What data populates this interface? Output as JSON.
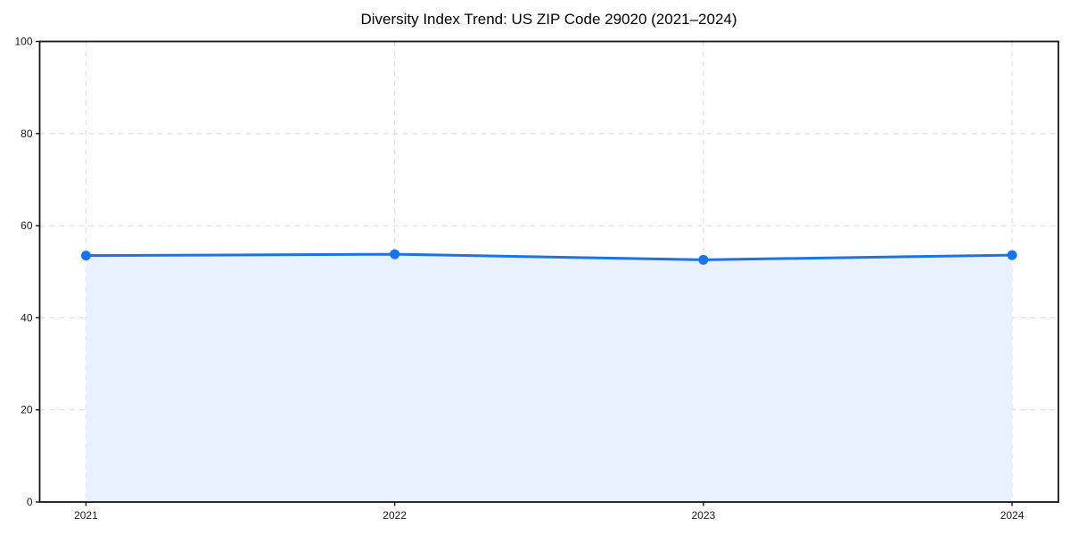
{
  "chart_data": {
    "type": "area",
    "title": "Diversity Index Trend: US ZIP Code 29020 (2021–2024)",
    "series_name": "Diversity Index",
    "x": [
      2021,
      2022,
      2023,
      2024
    ],
    "values": [
      53.5,
      53.8,
      52.6,
      53.6
    ],
    "xticks": [
      2021,
      2022,
      2023,
      2024
    ],
    "yticks": [
      0,
      20,
      40,
      60,
      80,
      100
    ],
    "ylim": [
      0,
      100
    ],
    "xlabel": "",
    "ylabel": "",
    "grid": true,
    "grid_style": "dashed",
    "legend": "none",
    "marker": "circle",
    "colors": {
      "line": "#1a73e8",
      "marker": "#1a73e8",
      "fill": "#e8f1fd",
      "grid": "#dcdcdc",
      "spine": "#151515",
      "tick_label": "#1a1a1a",
      "title": "#000000",
      "background": "#ffffff"
    }
  }
}
